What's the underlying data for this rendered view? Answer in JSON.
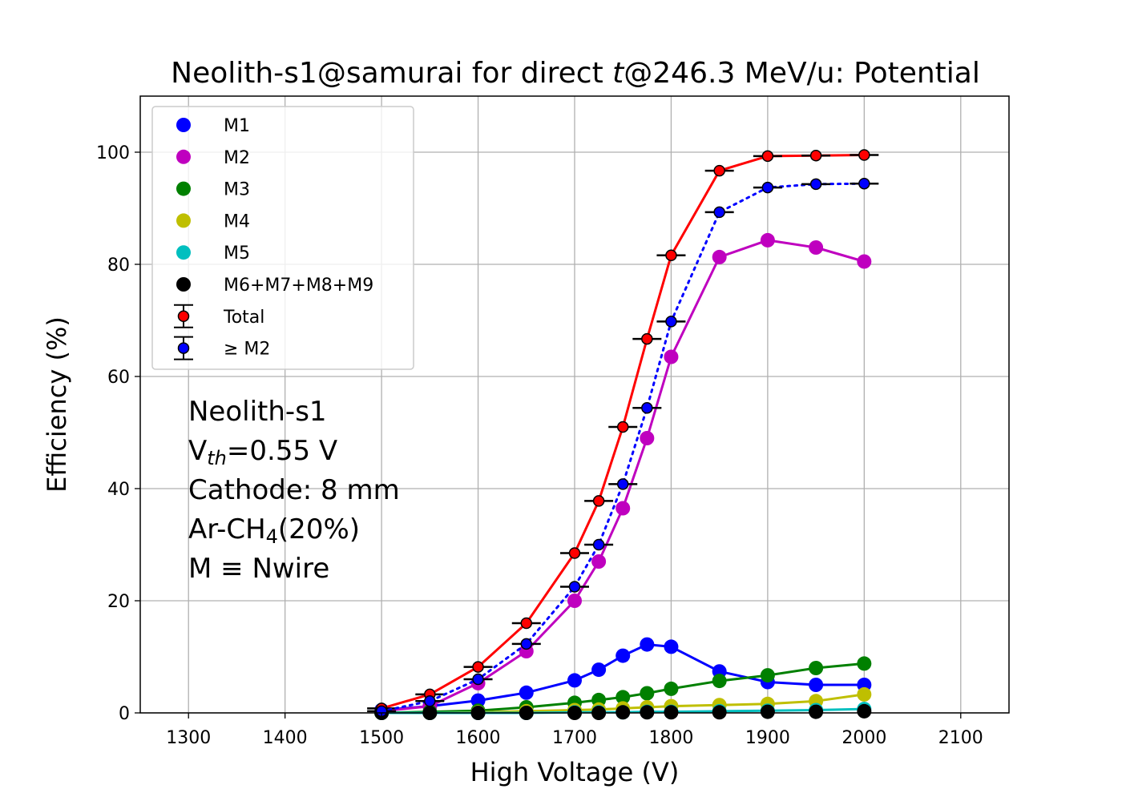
{
  "chart_data": {
    "type": "line",
    "title_parts": [
      "Neolith-s1@samurai for direct ",
      "t",
      "@246.3 MeV/u: Potential"
    ],
    "xlabel": "High Voltage (V)",
    "ylabel": "Efficiency (%)",
    "xlim": [
      1250,
      2150
    ],
    "ylim": [
      0,
      110
    ],
    "xticks": [
      1300,
      1400,
      1500,
      1600,
      1700,
      1800,
      1900,
      2000,
      2100
    ],
    "yticks": [
      0,
      20,
      40,
      60,
      80,
      100
    ],
    "xtick_labels": [
      "1300",
      "1400",
      "1500",
      "1600",
      "1700",
      "1800",
      "1900",
      "2000",
      "2100"
    ],
    "ytick_labels": [
      "0",
      "20",
      "40",
      "60",
      "80",
      "100"
    ],
    "grid": true,
    "legend_position": "top-left",
    "x": [
      1500,
      1550,
      1600,
      1650,
      1700,
      1725,
      1750,
      1775,
      1800,
      1850,
      1900,
      1950,
      2000
    ],
    "series": [
      {
        "name": "M1",
        "color": "#0000ff",
        "marker": "dot",
        "line": "solid",
        "values": [
          0.5,
          1.2,
          2.2,
          3.6,
          5.8,
          7.7,
          10.2,
          12.2,
          11.8,
          7.4,
          5.5,
          5.0,
          5.0
        ]
      },
      {
        "name": "M2",
        "color": "#bf00bf",
        "marker": "dot",
        "line": "solid",
        "values": [
          0.3,
          1.2,
          5.3,
          11.0,
          20.0,
          27.0,
          36.5,
          49.0,
          63.5,
          81.3,
          84.3,
          83.0,
          80.5
        ]
      },
      {
        "name": "M3",
        "color": "#008000",
        "marker": "dot",
        "line": "solid",
        "values": [
          0.0,
          0.2,
          0.4,
          1.0,
          1.8,
          2.3,
          2.8,
          3.5,
          4.3,
          5.7,
          6.7,
          8.0,
          8.8
        ]
      },
      {
        "name": "M4",
        "color": "#bfbf00",
        "marker": "dot",
        "line": "solid",
        "values": [
          0.0,
          0.0,
          0.1,
          0.3,
          0.5,
          0.6,
          0.8,
          1.0,
          1.2,
          1.4,
          1.6,
          2.1,
          3.3
        ]
      },
      {
        "name": "M5",
        "color": "#00bfbf",
        "marker": "dot",
        "line": "solid",
        "values": [
          0.0,
          0.0,
          0.0,
          0.0,
          0.1,
          0.1,
          0.1,
          0.2,
          0.2,
          0.3,
          0.4,
          0.5,
          0.7
        ]
      },
      {
        "name": "M6+M7+M8+M9",
        "color": "#000000",
        "marker": "dot",
        "line": "none",
        "values": [
          0.0,
          0.0,
          0.0,
          0.0,
          0.0,
          0.0,
          0.1,
          0.1,
          0.1,
          0.1,
          0.2,
          0.2,
          0.3
        ]
      },
      {
        "name": "Total",
        "color": "#ff0000",
        "marker": "errorbar",
        "line": "solid",
        "values": [
          0.8,
          3.3,
          8.2,
          16.0,
          28.5,
          37.8,
          51.0,
          66.7,
          81.6,
          96.7,
          99.3,
          99.4,
          99.5
        ]
      },
      {
        "name": "≥ M2",
        "color": "#0000ff",
        "marker": "errorbar",
        "line": "dotted",
        "values": [
          0.3,
          2.1,
          6.0,
          12.3,
          22.5,
          30.0,
          40.8,
          54.4,
          69.8,
          89.3,
          93.7,
          94.3,
          94.4
        ]
      }
    ],
    "annotations": [
      {
        "text": "Neolith-s1",
        "color": "#ffa500"
      },
      {
        "text_parts": [
          "V",
          "th",
          "=0.55 V"
        ],
        "color": "#0000ff"
      },
      {
        "text": "Cathode: 8 mm",
        "color": "#0000ff"
      },
      {
        "text_parts": [
          "Ar-CH",
          "4",
          "(20%)"
        ],
        "color": "#0000ff"
      },
      {
        "text": "M ≡ Nwire",
        "color": "#0000ff"
      }
    ]
  }
}
